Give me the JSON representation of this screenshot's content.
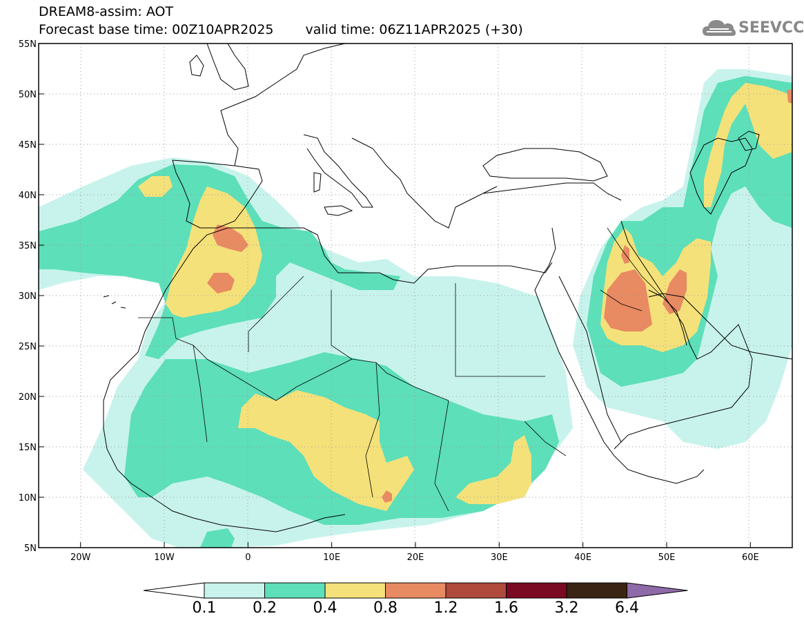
{
  "title": {
    "line1": "DREAM8-assim: AOT",
    "base_time": "Forecast base time: 00Z10APR2025",
    "valid_time": "valid time: 06Z11APR2025 (+30)"
  },
  "logo": {
    "text": "SEEVCCC",
    "icon": "cloud-icon"
  },
  "map": {
    "lon_range": [
      -25,
      65
    ],
    "lat_range": [
      5,
      55
    ],
    "lon_ticks": [
      {
        "value": -20,
        "label": "20W"
      },
      {
        "value": -10,
        "label": "10W"
      },
      {
        "value": 0,
        "label": "0"
      },
      {
        "value": 10,
        "label": "10E"
      },
      {
        "value": 20,
        "label": "20E"
      },
      {
        "value": 30,
        "label": "30E"
      },
      {
        "value": 40,
        "label": "40E"
      },
      {
        "value": 50,
        "label": "50E"
      },
      {
        "value": 60,
        "label": "60E"
      }
    ],
    "lat_ticks": [
      {
        "value": 55,
        "label": "55N"
      },
      {
        "value": 50,
        "label": "50N"
      },
      {
        "value": 45,
        "label": "45N"
      },
      {
        "value": 40,
        "label": "40N"
      },
      {
        "value": 35,
        "label": "35N"
      },
      {
        "value": 30,
        "label": "30N"
      },
      {
        "value": 25,
        "label": "25N"
      },
      {
        "value": 20,
        "label": "20N"
      },
      {
        "value": 15,
        "label": "15N"
      },
      {
        "value": 10,
        "label": "10N"
      },
      {
        "value": 5,
        "label": "5N"
      }
    ],
    "grid": "dotted"
  },
  "colorbar": {
    "colors": [
      "#ffffff",
      "#c8f3ec",
      "#5ddfb9",
      "#f5e17a",
      "#e88a62",
      "#b04a3c",
      "#7a0a22",
      "#3b2414",
      "#8e6aa8"
    ],
    "labels": [
      "0.1",
      "0.2",
      "0.4",
      "0.8",
      "1.2",
      "1.6",
      "3.2",
      "6.4"
    ]
  }
}
